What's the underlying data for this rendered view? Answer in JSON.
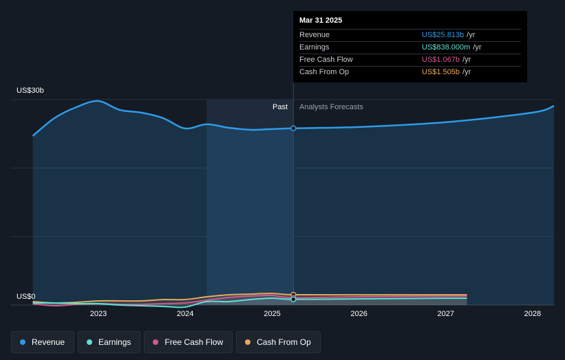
{
  "chart_data": {
    "type": "area",
    "y_label_top": "US$30b",
    "y_label_bottom": "US$0",
    "ylim": [
      0,
      30
    ],
    "x_ticks": [
      "2023",
      "2024",
      "2025",
      "2026",
      "2027",
      "2028"
    ],
    "past_label": "Past",
    "forecast_label": "Analysts Forecasts",
    "divider_date": "2025-03-31",
    "series": [
      {
        "name": "Revenue",
        "color": "#2f9be8",
        "points": [
          [
            "2022-03-31",
            24.7
          ],
          [
            "2022-06-30",
            27.3
          ],
          [
            "2022-09-30",
            28.9
          ],
          [
            "2022-12-31",
            29.8
          ],
          [
            "2023-03-31",
            28.5
          ],
          [
            "2023-06-30",
            28.1
          ],
          [
            "2023-09-30",
            27.3
          ],
          [
            "2023-12-31",
            25.8
          ],
          [
            "2024-03-31",
            26.4
          ],
          [
            "2024-06-30",
            25.9
          ],
          [
            "2024-09-30",
            25.6
          ],
          [
            "2024-12-31",
            25.7
          ],
          [
            "2025-03-31",
            25.813
          ],
          [
            "2025-12-31",
            26.0
          ],
          [
            "2026-12-31",
            26.7
          ],
          [
            "2027-12-31",
            28.1
          ],
          [
            "2028-03-31",
            29.1
          ]
        ]
      },
      {
        "name": "Earnings",
        "color": "#5ce1d6",
        "points": [
          [
            "2022-03-31",
            0.3
          ],
          [
            "2022-06-30",
            0.3
          ],
          [
            "2022-09-30",
            0.2
          ],
          [
            "2022-12-31",
            0.2
          ],
          [
            "2023-03-31",
            0.0
          ],
          [
            "2023-06-30",
            -0.1
          ],
          [
            "2023-09-30",
            -0.2
          ],
          [
            "2023-12-31",
            -0.3
          ],
          [
            "2024-03-31",
            0.5
          ],
          [
            "2024-06-30",
            0.5
          ],
          [
            "2024-09-30",
            0.8
          ],
          [
            "2024-12-31",
            1.0
          ],
          [
            "2025-03-31",
            0.838
          ],
          [
            "2025-12-31",
            0.9
          ],
          [
            "2026-12-31",
            1.0
          ],
          [
            "2027-03-31",
            1.0
          ]
        ]
      },
      {
        "name": "Free Cash Flow",
        "color": "#d2588f",
        "points": [
          [
            "2022-03-31",
            0.2
          ],
          [
            "2022-06-30",
            -0.1
          ],
          [
            "2022-09-30",
            0.1
          ],
          [
            "2022-12-31",
            0.2
          ],
          [
            "2023-03-31",
            0.1
          ],
          [
            "2023-06-30",
            0.1
          ],
          [
            "2023-09-30",
            0.2
          ],
          [
            "2023-12-31",
            0.3
          ],
          [
            "2024-03-31",
            0.7
          ],
          [
            "2024-06-30",
            1.1
          ],
          [
            "2024-09-30",
            1.3
          ],
          [
            "2024-12-31",
            1.4
          ],
          [
            "2025-03-31",
            1.067
          ],
          [
            "2025-12-31",
            1.2
          ],
          [
            "2026-12-31",
            1.3
          ],
          [
            "2027-03-31",
            1.3
          ]
        ]
      },
      {
        "name": "Cash From Op",
        "color": "#e8a95a",
        "points": [
          [
            "2022-03-31",
            0.5
          ],
          [
            "2022-06-30",
            0.3
          ],
          [
            "2022-09-30",
            0.4
          ],
          [
            "2022-12-31",
            0.6
          ],
          [
            "2023-03-31",
            0.6
          ],
          [
            "2023-06-30",
            0.6
          ],
          [
            "2023-09-30",
            0.8
          ],
          [
            "2023-12-31",
            0.8
          ],
          [
            "2024-03-31",
            1.2
          ],
          [
            "2024-06-30",
            1.5
          ],
          [
            "2024-09-30",
            1.6
          ],
          [
            "2024-12-31",
            1.7
          ],
          [
            "2025-03-31",
            1.505
          ],
          [
            "2025-12-31",
            1.5
          ],
          [
            "2026-12-31",
            1.5
          ],
          [
            "2027-03-31",
            1.5
          ]
        ]
      }
    ]
  },
  "tooltip": {
    "date": "Mar 31 2025",
    "rows": [
      {
        "name": "Revenue",
        "value": "US$25.813b",
        "unit": "/yr",
        "color": "#2f9be8"
      },
      {
        "name": "Earnings",
        "value": "US$838.000m",
        "unit": "/yr",
        "color": "#5ce1d6"
      },
      {
        "name": "Free Cash Flow",
        "value": "US$1.067b",
        "unit": "/yr",
        "color": "#d2588f"
      },
      {
        "name": "Cash From Op",
        "value": "US$1.505b",
        "unit": "/yr",
        "color": "#e8a95a"
      }
    ]
  },
  "legend": [
    {
      "label": "Revenue",
      "color": "#2f9be8"
    },
    {
      "label": "Earnings",
      "color": "#5ce1d6"
    },
    {
      "label": "Free Cash Flow",
      "color": "#d2588f"
    },
    {
      "label": "Cash From Op",
      "color": "#e8a95a"
    }
  ]
}
